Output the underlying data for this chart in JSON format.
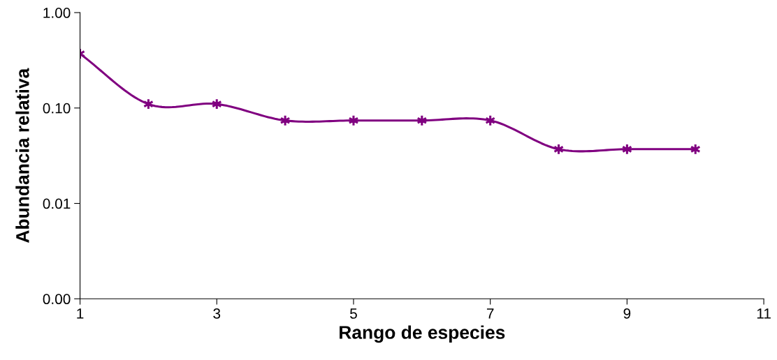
{
  "chart_data": {
    "type": "line",
    "xlabel": "Rango de especies",
    "ylabel": "Abundancia relativa",
    "x": [
      1,
      2,
      3,
      4,
      5,
      6,
      7,
      8,
      9,
      10
    ],
    "series": [
      {
        "color": "#800080",
        "values": [
          0.37,
          0.11,
          0.11,
          0.074,
          0.074,
          0.074,
          0.074,
          0.037,
          0.037,
          0.037
        ]
      }
    ],
    "log": "y",
    "xlim": [
      1,
      11
    ],
    "xticks": [
      1,
      3,
      5,
      7,
      9,
      11
    ],
    "ylim": [
      0.001,
      1
    ],
    "yticks": [
      {
        "value": 0.001,
        "label": "0.00"
      },
      {
        "value": 0.01,
        "label": "0.01"
      },
      {
        "value": 0.1,
        "label": "0.10"
      },
      {
        "value": 1,
        "label": "1.00"
      }
    ],
    "grid": false,
    "marker": "cross",
    "line_style": "solid"
  }
}
